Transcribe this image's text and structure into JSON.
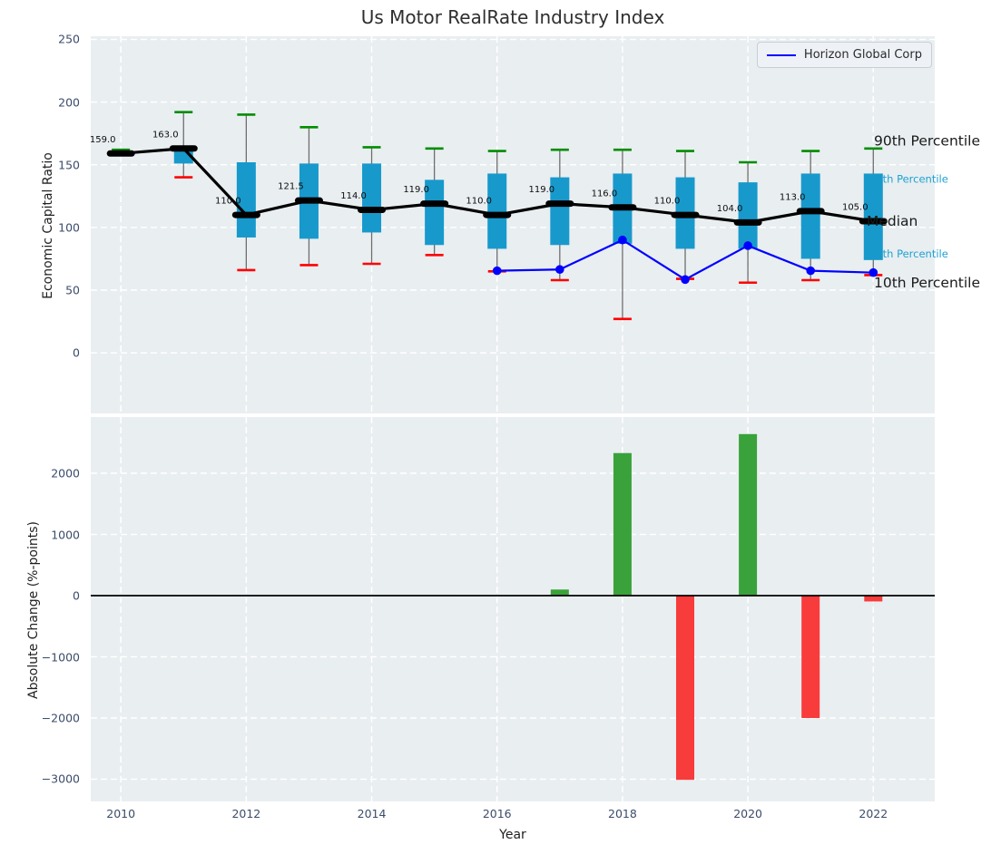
{
  "title": "Us Motor RealRate Industry Index",
  "legend": {
    "label": "Horizon Global Corp"
  },
  "axes": {
    "xlabel": "Year",
    "top_ylabel": "Economic Capital Ratio",
    "bottom_ylabel": "Absolute Change (%-points)"
  },
  "colors": {
    "box": "#1899cc",
    "cap_high": "#008d00",
    "cap_low": "#ff0000",
    "median": "#000000",
    "company_line": "#0000ff",
    "bar_positive": "#3aa23a",
    "bar_negative": "#f83b3b",
    "cyan_label": "#1ea2d2",
    "axes_background": "#e9eef1",
    "grid": "#ffffff",
    "tick_label": "#3c4c6a",
    "whisker": "#6e6e6e"
  },
  "chart_data": [
    {
      "type": "box-line",
      "title": "Us Motor RealRate Industry Index",
      "ylabel": "Economic Capital Ratio",
      "ylim": [
        -48.3,
        252.5
      ],
      "yticks": [
        0,
        50,
        100,
        150,
        200,
        250
      ],
      "xticks": [
        2010,
        2012,
        2014,
        2016,
        2018,
        2020,
        2022
      ],
      "grid": true,
      "legend_position": "upper right",
      "years": [
        2010,
        2011,
        2012,
        2013,
        2014,
        2015,
        2016,
        2017,
        2018,
        2019,
        2020,
        2021,
        2022
      ],
      "median": [
        159.0,
        163.0,
        110.0,
        121.5,
        114.0,
        119.0,
        110.0,
        119.0,
        116.0,
        110.0,
        104.0,
        113.0,
        105.0
      ],
      "p90": [
        162,
        192,
        190,
        180,
        164,
        163,
        161,
        162,
        162,
        161,
        152,
        161,
        163
      ],
      "p75": [
        null,
        162,
        152,
        151,
        151,
        138,
        143,
        140,
        143,
        140,
        136,
        143,
        143
      ],
      "p25": [
        null,
        151,
        92,
        91,
        96,
        86,
        83,
        86,
        87,
        83,
        83,
        75,
        74
      ],
      "p10": [
        null,
        140,
        66,
        70,
        71,
        78,
        65,
        58,
        27,
        59,
        56,
        58,
        62
      ],
      "company_series": {
        "name": "Horizon Global Corp",
        "years": [
          2016,
          2017,
          2018,
          2019,
          2020,
          2021,
          2022
        ],
        "values": [
          65.5,
          66.5,
          90.0,
          58.5,
          85.5,
          65.5,
          64.0
        ]
      },
      "annotations": [
        {
          "label": "90th Percentile",
          "anchor_value": 169,
          "style": "black"
        },
        {
          "label": "75th Percentile",
          "anchor_value": 138.5,
          "style": "cyan"
        },
        {
          "label": "Median",
          "anchor_value": 105,
          "style": "black"
        },
        {
          "label": "25th Percentile",
          "anchor_value": 79,
          "style": "cyan"
        },
        {
          "label": "10th Percentile",
          "anchor_value": 56,
          "style": "black"
        }
      ]
    },
    {
      "type": "bar",
      "ylabel": "Absolute Change (%-points)",
      "xlabel": "Year",
      "ylim": [
        -3363,
        2919
      ],
      "yticks": [
        2000,
        1000,
        0,
        -1000,
        -2000,
        -3000
      ],
      "xticks": [
        2010,
        2012,
        2014,
        2016,
        2018,
        2020,
        2022
      ],
      "grid": true,
      "zero_line": true,
      "years": [
        2017,
        2018,
        2019,
        2020,
        2021,
        2022
      ],
      "values": [
        100,
        2330,
        -3010,
        2640,
        -2000,
        -95
      ]
    }
  ]
}
